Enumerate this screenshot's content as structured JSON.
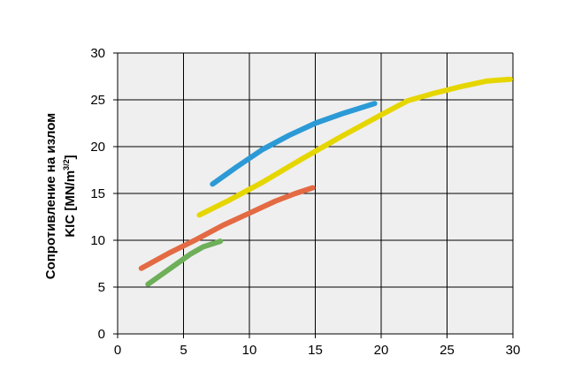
{
  "chart_data": {
    "type": "line",
    "title": "",
    "xlabel": "",
    "ylabel": {
      "line1": "Сопротивление на излом",
      "line2_prefix": "KIC [MN/m",
      "line2_sup": "3/2",
      "line2_suffix": "]"
    },
    "xlim": [
      0,
      30
    ],
    "ylim": [
      0,
      30
    ],
    "xticks": [
      "0",
      "5",
      "10",
      "15",
      "20",
      "25",
      "30"
    ],
    "yticks": [
      "0",
      "5",
      "10",
      "15",
      "20",
      "25",
      "30"
    ],
    "grid": true,
    "legend": "none",
    "colors": {
      "plot_background": "#efefef",
      "grid": "#000000"
    },
    "series": [
      {
        "color": "#2b9ad6",
        "points": [
          [
            7.2,
            16.0
          ],
          [
            9.0,
            17.8
          ],
          [
            11.0,
            19.7
          ],
          [
            13.0,
            21.2
          ],
          [
            15.0,
            22.5
          ],
          [
            17.0,
            23.5
          ],
          [
            19.5,
            24.6
          ]
        ]
      },
      {
        "color": "#e6d600",
        "points": [
          [
            6.2,
            12.7
          ],
          [
            8.5,
            14.3
          ],
          [
            11.0,
            16.2
          ],
          [
            14.0,
            18.7
          ],
          [
            17.0,
            21.1
          ],
          [
            20.0,
            23.4
          ],
          [
            22.0,
            24.9
          ],
          [
            24.0,
            25.7
          ],
          [
            26.0,
            26.4
          ],
          [
            28.0,
            27.0
          ],
          [
            29.8,
            27.2
          ]
        ]
      },
      {
        "color": "#e36a43",
        "points": [
          [
            1.8,
            7.0
          ],
          [
            4.0,
            8.7
          ],
          [
            6.0,
            10.1
          ],
          [
            8.0,
            11.6
          ],
          [
            10.0,
            12.9
          ],
          [
            12.0,
            14.2
          ],
          [
            13.5,
            15.0
          ],
          [
            14.8,
            15.6
          ]
        ]
      },
      {
        "color": "#6eaf5a",
        "points": [
          [
            2.3,
            5.3
          ],
          [
            3.5,
            6.5
          ],
          [
            4.5,
            7.5
          ],
          [
            5.5,
            8.5
          ],
          [
            6.5,
            9.3
          ],
          [
            7.8,
            9.9
          ]
        ]
      }
    ]
  }
}
